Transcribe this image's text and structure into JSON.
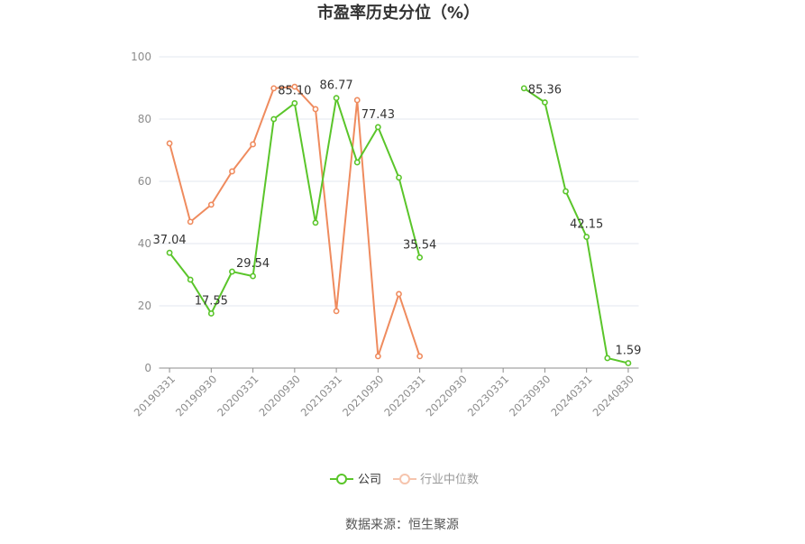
{
  "chart_data": {
    "type": "line",
    "title": "市盈率历史分位（%）",
    "categories": [
      "20190331",
      "",
      "20190930",
      "",
      "20200331",
      "",
      "20200930",
      "",
      "20210331",
      "",
      "20210930",
      "",
      "20220331",
      "",
      "20220930",
      "",
      "20230331",
      "",
      "20230930",
      "",
      "20240331",
      "",
      "20240830"
    ],
    "y_ticks": [
      0,
      20,
      40,
      60,
      80,
      100
    ],
    "ylim": [
      0,
      100
    ],
    "grid": true,
    "legend_position": "bottom",
    "series": [
      {
        "name": "公司",
        "color": "#5ac52a",
        "values": [
          37.04,
          28.4,
          17.55,
          31.0,
          29.54,
          80.0,
          85.1,
          46.7,
          86.77,
          66.1,
          77.43,
          61.2,
          35.54,
          null,
          null,
          null,
          null,
          89.9,
          85.36,
          56.8,
          42.15,
          3.2,
          1.59
        ],
        "labels": [
          "37.04",
          null,
          "17.55",
          null,
          "29.54",
          null,
          "85.10",
          null,
          "86.77",
          null,
          "77.43",
          null,
          "35.54",
          null,
          null,
          null,
          null,
          null,
          "85.36",
          null,
          "42.15",
          null,
          "1.59"
        ]
      },
      {
        "name": "行业中位数",
        "color": "#ef8b5e",
        "values": [
          72.2,
          47.0,
          52.5,
          63.2,
          71.9,
          89.9,
          90.4,
          83.2,
          18.3,
          86.1,
          3.8,
          23.8,
          3.8,
          null,
          null,
          null,
          null,
          null,
          null,
          null,
          null,
          null,
          null
        ]
      }
    ],
    "source": "数据来源：恒生聚源"
  }
}
